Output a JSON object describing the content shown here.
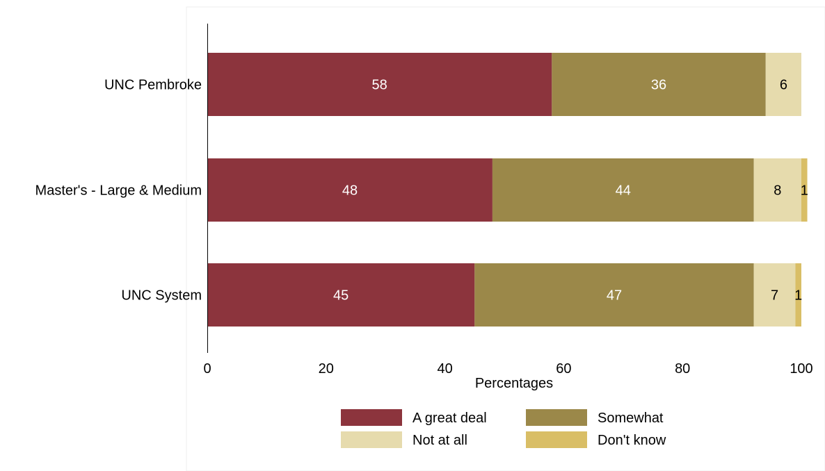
{
  "chart_data": {
    "type": "bar",
    "orientation": "horizontal",
    "stacked": true,
    "categories": [
      "UNC Pembroke",
      "Master's - Large & Medium",
      "UNC System"
    ],
    "series": [
      {
        "name": "A great deal",
        "values": [
          58,
          48,
          45
        ],
        "labels": [
          "58",
          "48",
          "45"
        ],
        "color": "#8c343d",
        "label_color": "#ffffff"
      },
      {
        "name": "Somewhat",
        "values": [
          36,
          44,
          47
        ],
        "labels": [
          "36",
          "44",
          "47"
        ],
        "color": "#9b8849",
        "label_color": "#ffffff"
      },
      {
        "name": "Not at all",
        "values": [
          6,
          8,
          7
        ],
        "labels": [
          "6",
          "8",
          "7"
        ],
        "color": "#e6dbad",
        "label_color": "#000000"
      },
      {
        "name": "Don't know",
        "values": [
          0,
          1,
          1
        ],
        "labels": [
          "",
          "1",
          "1"
        ],
        "color": "#d9be66",
        "label_color": "#000000"
      }
    ],
    "xlabel": "Percentages",
    "xlim": [
      0,
      100
    ],
    "xticks": [
      0,
      20,
      40,
      60,
      80,
      100
    ],
    "grid": false,
    "legend_position": "bottom"
  }
}
